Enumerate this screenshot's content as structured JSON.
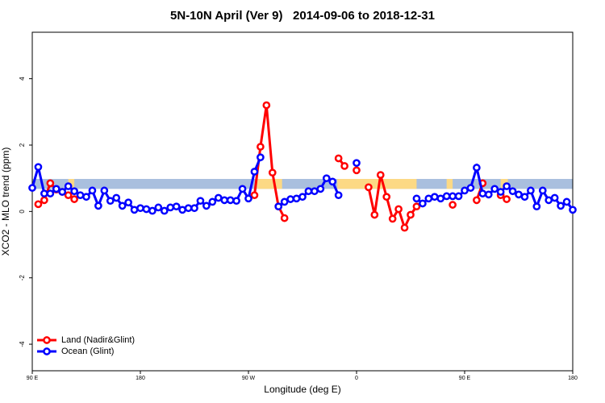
{
  "chart_data": {
    "type": "line",
    "title": "5N-10N April (Ver 9)   2014-09-06 to 2018-12-31",
    "x_label": "Longitude (deg E)",
    "y_label": "XCO2 - MLO trend (ppm)",
    "xlim": [
      90,
      540
    ],
    "ylim": [
      -4.8,
      5.4
    ],
    "xticks": [
      {
        "value": 90,
        "label": "90 E"
      },
      180,
      {
        "value": 270,
        "label": "90 W"
      },
      {
        "value": 360,
        "label": "0"
      },
      {
        "value": 450,
        "label": "90 E"
      },
      {
        "value": 540,
        "label": "180"
      }
    ],
    "yticks": [
      -4,
      -2,
      0,
      2,
      4
    ],
    "band": [
      0.68,
      0.98
    ],
    "band_color": "#a9bfde",
    "highlight_color": "#fcd985",
    "highlights": [
      [
        120,
        125
      ],
      [
        277,
        298
      ],
      [
        344,
        410
      ],
      [
        435,
        440
      ],
      [
        480,
        486
      ]
    ],
    "legend": "bottom-left",
    "x": [
      90,
      95,
      100,
      105,
      110,
      115,
      120,
      125,
      130,
      135,
      140,
      145,
      150,
      155,
      160,
      165,
      170,
      175,
      180,
      185,
      190,
      195,
      200,
      205,
      210,
      215,
      220,
      225,
      230,
      235,
      240,
      245,
      250,
      255,
      260,
      265,
      270,
      275,
      280,
      285,
      290,
      295,
      300,
      305,
      310,
      315,
      320,
      325,
      330,
      335,
      340,
      345,
      350,
      355,
      360,
      365,
      370,
      375,
      380,
      385,
      390,
      395,
      400,
      405,
      410,
      415,
      420,
      425,
      430,
      435,
      440,
      445,
      450,
      455,
      460,
      465,
      470,
      475,
      480,
      485,
      490,
      495,
      500,
      505,
      510,
      515,
      520,
      525,
      530,
      535,
      540
    ],
    "series": [
      {
        "name": "Land (Nadir&Glint)",
        "color": "#ff0000",
        "values": [
          null,
          0.22,
          0.34,
          0.85,
          0.66,
          0.59,
          0.49,
          0.37,
          null,
          null,
          null,
          null,
          null,
          null,
          null,
          null,
          null,
          null,
          null,
          null,
          null,
          null,
          null,
          null,
          null,
          null,
          null,
          null,
          null,
          null,
          null,
          null,
          null,
          null,
          null,
          null,
          null,
          0.49,
          1.95,
          3.2,
          1.17,
          0.15,
          -0.2,
          null,
          null,
          null,
          null,
          null,
          null,
          null,
          null,
          1.6,
          1.37,
          null,
          1.24,
          null,
          0.73,
          -0.1,
          1.1,
          0.44,
          -0.22,
          0.07,
          -0.49,
          -0.1,
          0.15,
          null,
          null,
          null,
          null,
          null,
          0.2,
          null,
          null,
          null,
          0.34,
          0.85,
          null,
          null,
          0.49,
          0.37,
          null,
          null,
          null,
          null,
          null,
          null,
          null,
          null,
          null,
          null,
          null
        ]
      },
      {
        "name": "Ocean (Glint)",
        "color": "#0000ff",
        "values": [
          0.71,
          1.34,
          0.54,
          0.54,
          0.68,
          0.59,
          0.76,
          0.61,
          0.49,
          0.44,
          0.63,
          0.17,
          0.63,
          0.32,
          0.41,
          0.17,
          0.27,
          0.05,
          0.1,
          0.07,
          0.02,
          0.12,
          0.02,
          0.12,
          0.15,
          0.05,
          0.1,
          0.1,
          0.32,
          0.17,
          0.29,
          0.41,
          0.34,
          0.34,
          0.32,
          0.68,
          0.39,
          1.2,
          1.63,
          null,
          null,
          0.15,
          0.29,
          0.37,
          0.39,
          0.44,
          0.61,
          0.61,
          0.68,
          1.0,
          0.9,
          0.49,
          null,
          null,
          1.46,
          null,
          null,
          null,
          null,
          null,
          null,
          null,
          null,
          null,
          0.39,
          0.24,
          0.39,
          0.44,
          0.39,
          0.46,
          0.46,
          0.46,
          0.63,
          0.71,
          1.32,
          0.54,
          0.51,
          0.68,
          0.59,
          0.76,
          0.61,
          0.51,
          0.44,
          0.63,
          0.15,
          0.63,
          0.34,
          0.41,
          0.17,
          0.29,
          0.05
        ]
      }
    ]
  }
}
